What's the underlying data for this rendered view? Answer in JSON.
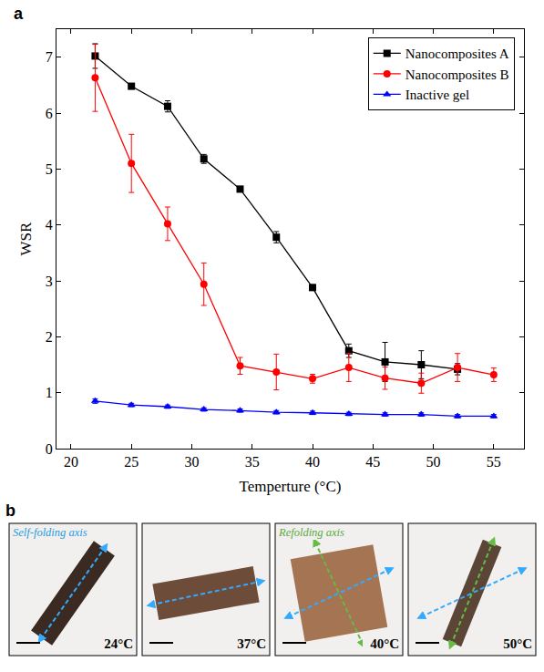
{
  "chart_data": {
    "type": "line",
    "panel": "a",
    "x_label": "Temperture (°C)",
    "y_label": "WSR",
    "x": [
      22,
      25,
      28,
      31,
      34,
      37,
      40,
      43,
      46,
      49,
      52,
      55
    ],
    "series": [
      {
        "name": "Nanocomposites A",
        "color": "#000000",
        "marker": "square",
        "line_style": "solid",
        "values": [
          7.02,
          6.48,
          6.12,
          5.18,
          4.64,
          3.78,
          2.88,
          1.75,
          1.55,
          1.5,
          1.42,
          null
        ],
        "errors": [
          0.22,
          0.05,
          0.1,
          0.08,
          0.05,
          0.1,
          0.05,
          0.12,
          0.35,
          0.25,
          0.1,
          null
        ]
      },
      {
        "name": "Nanocomposites B",
        "color": "#ff0000",
        "marker": "circle",
        "line_style": "solid",
        "values": [
          6.63,
          5.1,
          4.02,
          2.94,
          1.48,
          1.37,
          1.25,
          1.45,
          1.26,
          1.17,
          1.45,
          1.32
        ],
        "errors": [
          0.6,
          0.52,
          0.3,
          0.38,
          0.15,
          0.32,
          0.08,
          0.25,
          0.2,
          0.18,
          0.25,
          0.12
        ]
      },
      {
        "name": "Inactive gel",
        "color": "#0000ff",
        "marker": "triangle-up",
        "line_style": "solid",
        "values": [
          0.85,
          0.78,
          0.75,
          0.7,
          0.68,
          0.65,
          0.64,
          0.62,
          0.61,
          0.61,
          0.58,
          0.58
        ],
        "errors": [
          0.04,
          0.03,
          0.03,
          0.03,
          0.03,
          0.03,
          0.03,
          0.03,
          0.03,
          0.03,
          0.03,
          0.03
        ]
      }
    ],
    "xlim": [
      18.8,
      57.5
    ],
    "xticks": [
      20,
      25,
      30,
      35,
      40,
      45,
      50,
      55
    ],
    "ylim": [
      0,
      7.5
    ],
    "yticks": [
      0,
      1,
      2,
      3,
      4,
      5,
      6,
      7
    ],
    "grid": false,
    "legend": "top-right"
  },
  "panel_b": {
    "letter": "b",
    "images": [
      {
        "label": "24°C",
        "axis_label": "Self-folding axis"
      },
      {
        "label": "37°C"
      },
      {
        "label": "40°C",
        "axis_label": "Refolding axis"
      },
      {
        "label": "50°C"
      }
    ]
  }
}
